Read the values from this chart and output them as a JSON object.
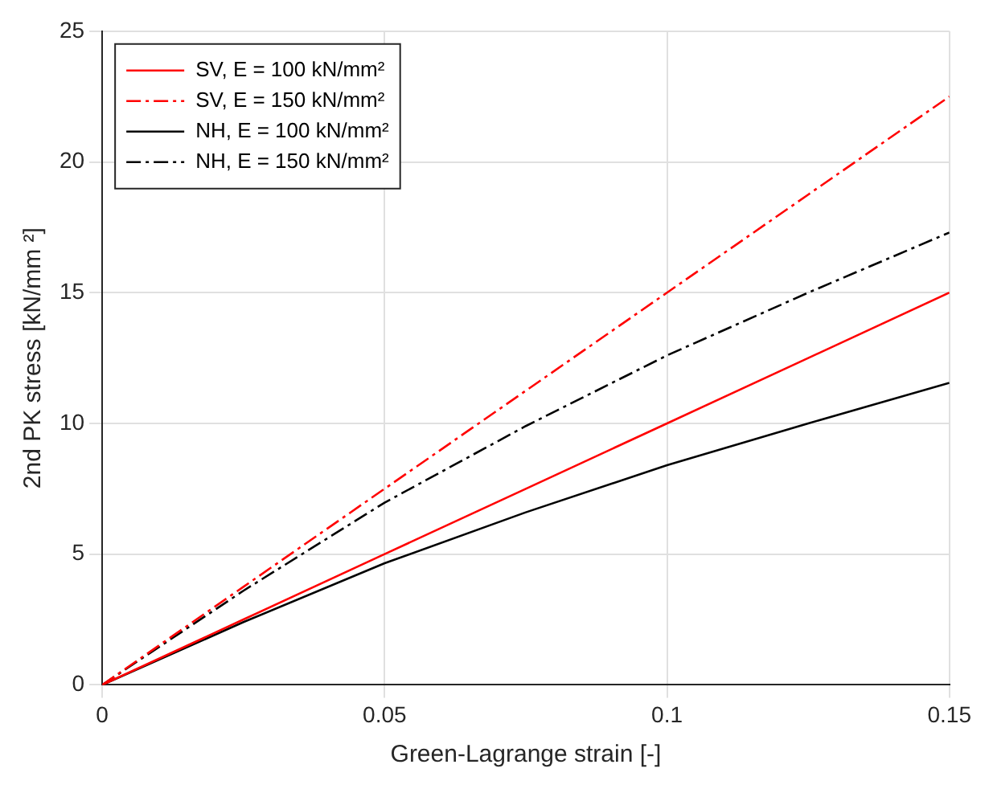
{
  "chart_data": {
    "type": "line",
    "xlabel": "Green-Lagrange strain [-]",
    "ylabel": "2nd PK stress [kN/mm ²]",
    "x": [
      0,
      0.025,
      0.05,
      0.075,
      0.1,
      0.125,
      0.15
    ],
    "xlim": [
      0,
      0.15
    ],
    "xticks": [
      0,
      0.05,
      0.1,
      0.15
    ],
    "ylim": [
      0,
      25
    ],
    "yticks": [
      0,
      5,
      10,
      15,
      20,
      25
    ],
    "grid": true,
    "legend": "top left",
    "marker": "none",
    "series": [
      {
        "name": "SV, E = 100 kN/mm²",
        "color": "#ff0000",
        "line_style": "solid",
        "values": [
          0,
          2.5,
          5,
          7.5,
          10,
          12.5,
          15
        ]
      },
      {
        "name": "SV, E = 150 kN/mm²",
        "color": "#ff0000",
        "line_style": "dashdot",
        "values": [
          0,
          3.75,
          7.5,
          11.25,
          15,
          18.75,
          22.5
        ]
      },
      {
        "name": "NH, E = 100 kN/mm²",
        "color": "#000000",
        "line_style": "solid",
        "values": [
          0,
          2.4,
          4.65,
          6.6,
          8.4,
          10,
          11.55
        ]
      },
      {
        "name": "NH, E = 150 kN/mm²",
        "color": "#000000",
        "line_style": "dashdot",
        "values": [
          0,
          3.6,
          6.97,
          9.9,
          12.6,
          15,
          17.3
        ]
      }
    ]
  }
}
